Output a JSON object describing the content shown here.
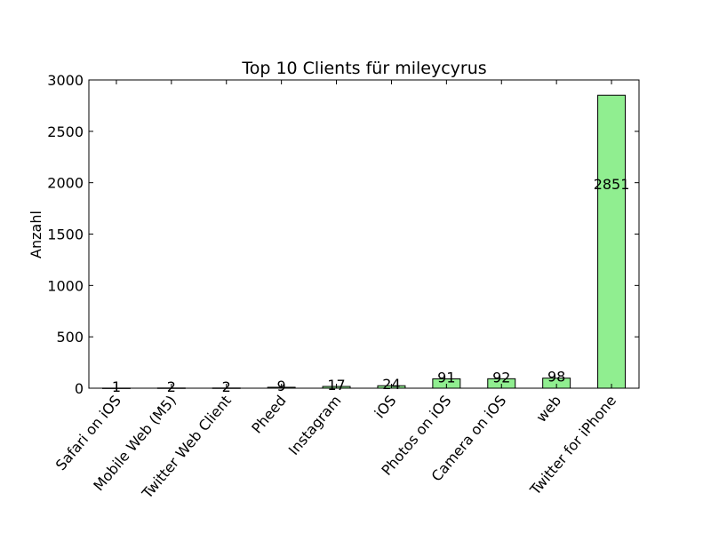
{
  "chart_data": {
    "type": "bar",
    "title": "Top 10 Clients für mileycyrus",
    "xlabel": "",
    "ylabel": "Anzahl",
    "categories": [
      "Safari on iOS",
      "Mobile Web (M5)",
      "Twitter Web Client",
      "Pheed",
      "Instagram",
      "iOS",
      "Photos on iOS",
      "Camera on iOS",
      "web",
      "Twitter for iPhone"
    ],
    "values": [
      1,
      2,
      2,
      9,
      17,
      24,
      91,
      92,
      98,
      2851
    ],
    "data_labels": [
      "1",
      "2",
      "2",
      "9",
      "17",
      "24",
      "91",
      "92",
      "98",
      "2851"
    ],
    "ylim": [
      0,
      3000
    ],
    "yticks": [
      0,
      500,
      1000,
      1500,
      2000,
      2500,
      3000
    ],
    "ytick_labels": [
      "0",
      "500",
      "1000",
      "1500",
      "2000",
      "2500",
      "3000"
    ],
    "bar_color": "#90ee90",
    "grid": false,
    "legend": "none"
  }
}
